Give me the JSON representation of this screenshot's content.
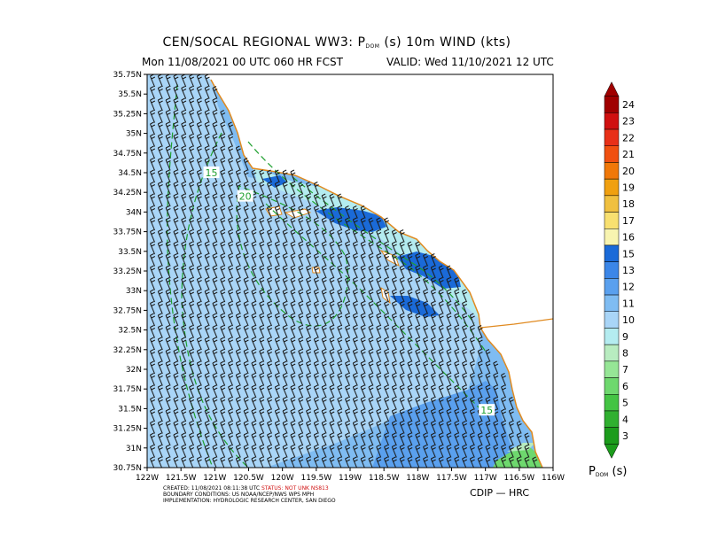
{
  "header": {
    "title_prefix": "CEN/SOCAL REGIONAL WW3: P",
    "title_sub": "DOM",
    "title_suffix": " (s) 10m WIND (kts)",
    "run": "Mon 11/08/2021 00 UTC 060 HR FCST",
    "valid": "VALID: Wed 11/10/2021 12 UTC"
  },
  "axes": {
    "lat_labels": [
      "35.75N",
      "35.5N",
      "35.25N",
      "35N",
      "34.75N",
      "34.5N",
      "34.25N",
      "34N",
      "33.75N",
      "33.5N",
      "33.25N",
      "33N",
      "32.75N",
      "32.5N",
      "32.25N",
      "32N",
      "31.75N",
      "31.5N",
      "31.25N",
      "31N",
      "30.75N"
    ],
    "lon_labels": [
      "122W",
      "121.5W",
      "121W",
      "120.5W",
      "120W",
      "119.5W",
      "119W",
      "118.5W",
      "118W",
      "117.5W",
      "117W",
      "116.5W",
      "116W"
    ],
    "lat_range": [
      30.75,
      35.75
    ],
    "lon_range": [
      -122,
      -116
    ]
  },
  "contours": [
    {
      "label": "15",
      "lon": -121.05,
      "lat": 34.5
    },
    {
      "label": "20",
      "lon": -120.55,
      "lat": 34.2
    },
    {
      "label": "15",
      "lon": -116.98,
      "lat": 31.48
    }
  ],
  "colorbar": {
    "labels": [
      "24",
      "23",
      "22",
      "21",
      "20",
      "19",
      "18",
      "17",
      "16",
      "15",
      "13",
      "12",
      "11",
      "10",
      "9",
      "8",
      "7",
      "6",
      "5",
      "4",
      "3"
    ],
    "colors": [
      "#a00000",
      "#d01010",
      "#e83018",
      "#f05010",
      "#f07808",
      "#f0a010",
      "#f0c040",
      "#f8e070",
      "#f8f4b0",
      "#1a6ad8",
      "#3b86e8",
      "#5aa0ee",
      "#7fbcf2",
      "#a9d5f7",
      "#b4ecf0",
      "#b8ecc0",
      "#96e696",
      "#6ed86e",
      "#44c444",
      "#30b030",
      "#1c9c1c"
    ],
    "units_prefix": "P",
    "units_sub": "DOM",
    "units_suffix": "  (s)"
  },
  "colors": {
    "coast": "#e08a20",
    "contour": "#20a030",
    "land": "#ffffff",
    "sea_base": "#7fbcf2"
  },
  "credits": {
    "line1_a": "CREATED: 11/08/2021 08:11:38 UTC ",
    "line1_status": "STATUS: NOT UNK NS813",
    "line2": "BOUNDARY CONDITIONS: US NOAA/NCEP/NWS WPS MPH",
    "line3": "IMPLEMENTATION: HYDROLOGIC RESEARCH CENTER, SAN DIEGO"
  },
  "footer": {
    "source": "CDIP  —  HRC"
  }
}
